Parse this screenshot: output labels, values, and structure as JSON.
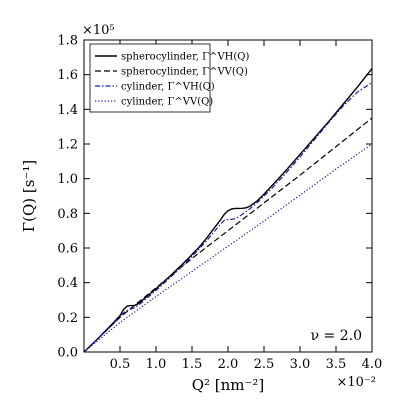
{
  "chart_data": {
    "type": "line",
    "xlabel": "Q² [nm⁻²]",
    "ylabel": "Γ(Q) [s⁻¹]",
    "xlim": [
      0.0,
      0.04
    ],
    "ylim": [
      0.0,
      180000
    ],
    "x_ticks": [
      0.005,
      0.01,
      0.015,
      0.02,
      0.025,
      0.03,
      0.035,
      0.04
    ],
    "x_tick_labels": [
      "0.5",
      "1.0",
      "1.5",
      "2.0",
      "2.5",
      "3.0",
      "3.5",
      "4.0"
    ],
    "y_ticks": [
      0,
      20000,
      40000,
      60000,
      80000,
      100000,
      120000,
      140000,
      160000,
      180000
    ],
    "y_tick_labels": [
      "0.0",
      "0.2",
      "0.4",
      "0.6",
      "0.8",
      "1.0",
      "1.2",
      "1.4",
      "1.6",
      "1.8"
    ],
    "x_multiplier": "×10⁻²",
    "y_multiplier": "×10⁵",
    "annotation": "ν = 2.0",
    "legend_position": "top-left",
    "series": [
      {
        "name": "spherocylinder, Γ^VH(Q)",
        "color": "#000000",
        "style": "solid",
        "x": [
          0.0,
          0.002,
          0.004,
          0.005,
          0.0055,
          0.006,
          0.0065,
          0.007,
          0.0075,
          0.008,
          0.01,
          0.012,
          0.014,
          0.016,
          0.017,
          0.018,
          0.019,
          0.0195,
          0.02,
          0.0205,
          0.021,
          0.0215,
          0.022,
          0.0225,
          0.023,
          0.024,
          0.025,
          0.026,
          0.028,
          0.03,
          0.032,
          0.034,
          0.036,
          0.038,
          0.04
        ],
        "y": [
          0,
          8000,
          16500,
          21000,
          24500,
          26500,
          26800,
          26800,
          27800,
          29500,
          36500,
          44000,
          52000,
          60500,
          65500,
          71000,
          76500,
          79500,
          81500,
          82500,
          82800,
          82800,
          82900,
          83200,
          84000,
          87000,
          91000,
          95500,
          104500,
          114000,
          123500,
          133000,
          143000,
          153000,
          163500
        ]
      },
      {
        "name": "spherocylinder, Γ^VV(Q)",
        "color": "#000000",
        "style": "dashed",
        "x": [
          0.0,
          0.005,
          0.01,
          0.015,
          0.02,
          0.025,
          0.03,
          0.035,
          0.04
        ],
        "y": [
          0,
          20000,
          37000,
          54000,
          70000,
          86000,
          102000,
          118500,
          135000
        ]
      },
      {
        "name": "cylinder, Γ^VH(Q)",
        "color": "#1a1ab0",
        "style": "dashdot",
        "x": [
          0.0,
          0.002,
          0.004,
          0.005,
          0.0055,
          0.006,
          0.0065,
          0.007,
          0.0075,
          0.008,
          0.01,
          0.012,
          0.014,
          0.016,
          0.017,
          0.018,
          0.019,
          0.0195,
          0.02,
          0.0205,
          0.021,
          0.0215,
          0.022,
          0.0225,
          0.023,
          0.024,
          0.025,
          0.026,
          0.028,
          0.03,
          0.032,
          0.034,
          0.036,
          0.038,
          0.04
        ],
        "y": [
          0,
          8000,
          16000,
          20500,
          22500,
          24000,
          24800,
          25500,
          26800,
          28500,
          35500,
          43000,
          51000,
          59500,
          64000,
          69000,
          74000,
          76000,
          76500,
          76500,
          77000,
          78000,
          79500,
          81000,
          82500,
          86000,
          90000,
          94000,
          103000,
          112500,
          122500,
          132500,
          142000,
          150000,
          155500
        ]
      },
      {
        "name": "cylinder, Γ^VV(Q)",
        "color": "#1a1ab0",
        "style": "dotted",
        "x": [
          0.0,
          0.005,
          0.01,
          0.015,
          0.02,
          0.025,
          0.03,
          0.035,
          0.04
        ],
        "y": [
          0,
          17000,
          32000,
          46500,
          61000,
          75500,
          90500,
          105500,
          120000
        ]
      }
    ]
  }
}
